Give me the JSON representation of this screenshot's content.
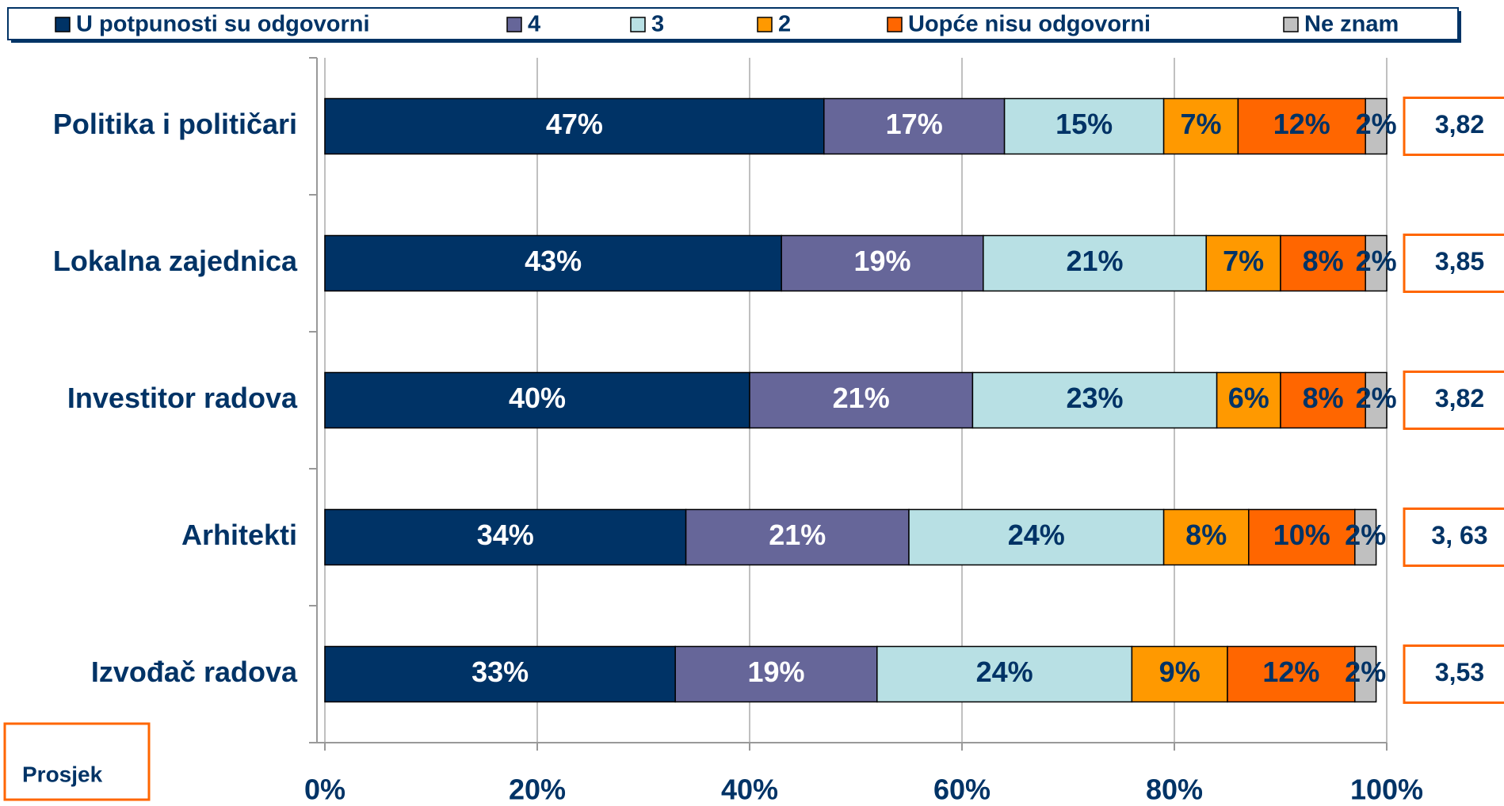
{
  "chart_data": {
    "type": "bar",
    "orientation": "horizontal",
    "stacked": true,
    "categories": [
      "Politika i političari",
      "Lokalna zajednica",
      "Investitor radova",
      "Arhitekti",
      "Izvođač radova"
    ],
    "series": [
      {
        "name": "U potpunosti su odgovorni",
        "color": "#003366",
        "label_color": "#ffffff",
        "values": [
          47,
          43,
          40,
          34,
          33
        ],
        "value_labels": [
          "47%",
          "43%",
          "40%",
          "34%",
          "33%"
        ]
      },
      {
        "name": "4",
        "color": "#666699",
        "label_color": "#ffffff",
        "values": [
          17,
          19,
          21,
          21,
          19
        ],
        "value_labels": [
          "17%",
          "19%",
          "21%",
          "21%",
          "19%"
        ]
      },
      {
        "name": "3",
        "color": "#b8e0e4",
        "label_color": "#003366",
        "values": [
          15,
          21,
          23,
          24,
          24
        ],
        "value_labels": [
          "15%",
          "21%",
          "23%",
          "24%",
          "24%"
        ]
      },
      {
        "name": "2",
        "color": "#ff9900",
        "label_color": "#003366",
        "values": [
          7,
          7,
          6,
          8,
          9
        ],
        "value_labels": [
          "7%",
          "7%",
          "6%",
          "8%",
          "9%"
        ]
      },
      {
        "name": "Uopće nisu odgovorni",
        "color": "#ff6600",
        "label_color": "#003366",
        "values": [
          12,
          8,
          8,
          10,
          12
        ],
        "value_labels": [
          "12%",
          "8%",
          "8%",
          "10%",
          "12%"
        ]
      },
      {
        "name": "Ne znam",
        "color": "#c0c0c0",
        "label_color": "#003366",
        "values": [
          2,
          2,
          2,
          2,
          2
        ],
        "value_labels": [
          "2%",
          "2%",
          "2%",
          "2%",
          "2%"
        ]
      }
    ],
    "xlim": [
      0,
      100
    ],
    "xticks": [
      {
        "value": 0,
        "label": "0%"
      },
      {
        "value": 20,
        "label": "20%"
      },
      {
        "value": 40,
        "label": "40%"
      },
      {
        "value": 60,
        "label": "60%"
      },
      {
        "value": 80,
        "label": "80%"
      },
      {
        "value": 100,
        "label": "100%"
      }
    ],
    "grid": true,
    "legend": "top",
    "average_title": "Prosjek",
    "averages": [
      "3,82",
      "3,85",
      "3,82",
      "3, 63",
      "3,53"
    ]
  }
}
